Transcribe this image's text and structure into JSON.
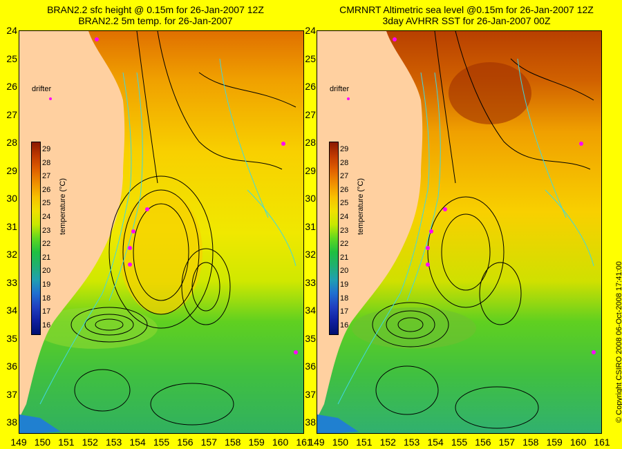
{
  "left_panel": {
    "title_line1": "BRAN2.2 sfc height @ 0.15m for 26-Jan-2007 12Z",
    "title_line2": "BRAN2.2 5m temp. for 26-Jan-2007",
    "drifter_label": "drifter"
  },
  "right_panel": {
    "title_line1": "CMRNRT Altimetric sea level  @0.15m  for 26-Jan-2007 12Z",
    "title_line2": "3day AVHRR SST for 26-Jan-2007 00Z",
    "drifter_label": "drifter"
  },
  "y_axis": {
    "ticks": [
      "24",
      "25",
      "26",
      "27",
      "28",
      "29",
      "30",
      "31",
      "32",
      "33",
      "34",
      "35",
      "36",
      "37",
      "38"
    ]
  },
  "x_axis": {
    "ticks": [
      "149",
      "150",
      "151",
      "152",
      "153",
      "154",
      "155",
      "156",
      "157",
      "158",
      "159",
      "160",
      "161"
    ]
  },
  "colorbar": {
    "label": "temperature (°C)",
    "ticks": [
      "29",
      "28",
      "27",
      "26",
      "25",
      "24",
      "23",
      "22",
      "21",
      "20",
      "19",
      "18",
      "17",
      "16"
    ],
    "colors": [
      "#8b1a00",
      "#c03a00",
      "#e06000",
      "#f09000",
      "#f8c000",
      "#f0e000",
      "#c8e800",
      "#60d820",
      "#20c040",
      "#20b070",
      "#20a0b0",
      "#2070d0",
      "#2040c0",
      "#1020a0",
      "#001070"
    ]
  },
  "copyright": "© Copyright CSIRO 2008   06-Oct-2008 17:41:00",
  "colors": {
    "land": "#ffd0a0",
    "background": "#ffff00",
    "ssh_contour": "#000000",
    "bathymetry_contour": "#40d8e0",
    "drifter": "#ff00ff"
  }
}
